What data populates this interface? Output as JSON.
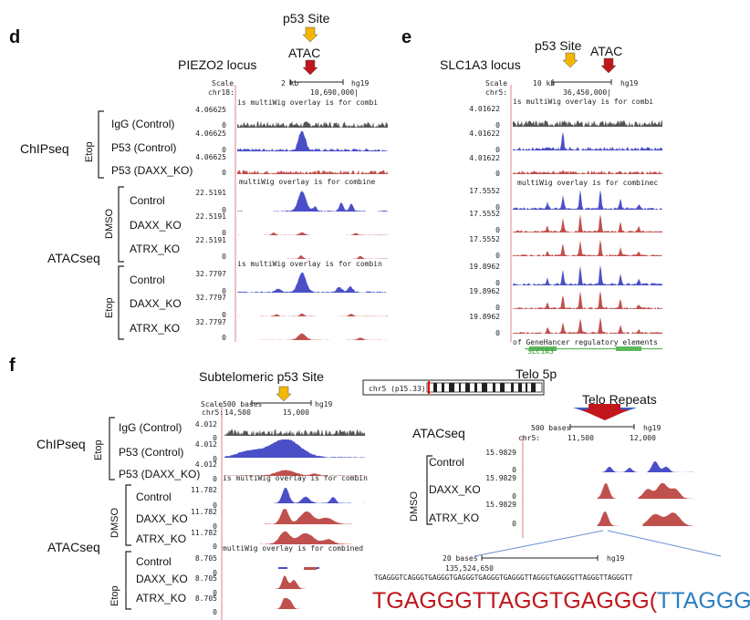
{
  "panel_d": {
    "letter": "d",
    "site_label": "p53 Site",
    "atac_label": "ATAC",
    "locus": "PIEZO2 locus",
    "scale": {
      "word": "Scale",
      "size": "2 kb",
      "build": "hg19",
      "chrom": "chr18:",
      "coord": "10,690,000|"
    },
    "overlay_text": "is multiWig overlay is for combi",
    "overlay_text2": "multiWig overlay is for combine",
    "overlay_text3": "is multiWig overlay is for combin",
    "scales": [
      "4.06625",
      "0",
      "4.06625",
      "0",
      "4.06625",
      "0",
      "22.5191",
      "0",
      "22.5191",
      "0",
      "22.5191",
      "0",
      "32.7797",
      "0",
      "32.7797",
      "0",
      "32.7797",
      "0"
    ],
    "tracks_chip": [
      "IgG (Control)",
      "P53 (Control)",
      "P53 (DAXX_KO)"
    ],
    "tracks_dmso": [
      "Control",
      "DAXX_KO",
      "ATRX_KO"
    ],
    "tracks_etop": [
      "Control",
      "DAXX_KO",
      "ATRX_KO"
    ],
    "group_chip": "ChIPseq",
    "group_atac": "ATACseq",
    "etop": "Etop",
    "dmso": "DMSO"
  },
  "panel_e": {
    "letter": "e",
    "site_label": "p53 Site",
    "atac_label": "ATAC",
    "locus": "SLC1A3 locus",
    "scale": {
      "word": "Scale",
      "size": "10 kb",
      "build": "hg19",
      "chrom": "chr5:",
      "coord": "36,450,000|"
    },
    "overlay_text": "is multiWig overlay is for combi",
    "overlay_text2": "multiWig overlay is for combinec",
    "scales": [
      "4.01622",
      "0",
      "4.01622",
      "0",
      "4.01622",
      "0",
      "17.5552",
      "0",
      "17.5552",
      "0",
      "17.5552",
      "0",
      "19.8962",
      "0",
      "19.8962",
      "0",
      "19.8962",
      "0"
    ],
    "footer": "of GeneHancer regulatory elements",
    "gene": "SLC1A3"
  },
  "panel_f": {
    "letter": "f",
    "site_label": "Subtelomeric p53 Site",
    "scale": {
      "word": "Scale",
      "size": "500 bases",
      "build": "hg19",
      "chrom": "chr5:",
      "coord1": "14,500",
      "coord2": "15,000"
    },
    "overlay_text": "is multiWig overlay is for combin",
    "overlay_text2": "multiWig overlay is for combined",
    "scales": [
      "4.012",
      "0",
      "4.012",
      "0",
      "4.012",
      "0",
      "11.782",
      "0",
      "11.782",
      "0",
      "11.782",
      "0",
      "8.705",
      "0",
      "8.705",
      "0",
      "8.705",
      "0"
    ],
    "tracks_chip": [
      "IgG (Control)",
      "P53 (Control)",
      "P53 (DAXX_KO)"
    ],
    "tracks_dmso": [
      "Control",
      "DAXX_KO",
      "ATRX_KO"
    ],
    "tracks_etop": [
      "Control",
      "DAXX_KO",
      "ATRX_KO"
    ],
    "group_chip": "ChIPseq",
    "group_atac": "ATACseq",
    "etop": "Etop",
    "dmso": "DMSO",
    "telo_title": "Telo 5p",
    "ideogram_label": "chr5 (p15.33)",
    "telo_repeats": "Telo Repeats",
    "atacseq2": "ATACseq",
    "scale2": {
      "size": "500 bases",
      "build": "hg19",
      "chrom": "chr5:",
      "coord1": "11,500",
      "coord2": "12,000"
    },
    "scales2": [
      "15.9829",
      "0",
      "15.9829",
      "0",
      "15.9829",
      "0"
    ],
    "tracks2": [
      "Control",
      "DAXX_KO",
      "ATRX_KO"
    ],
    "zoom_scale": {
      "size": "20 bases",
      "build": "hg19",
      "coord": "135,524,650"
    },
    "seq_small": "TGAGGGTCAGGGTGAGGGTGAGGGTGAGGGTGAGGGTTAGGGTGAGGGTTAGGGTTAGGGTT",
    "seq_red": "TGAGGGTTAGGTGAGGG(",
    "seq_blue": "TTAGGG)n"
  },
  "colors": {
    "gray": "#555555",
    "blue": "#4a4fc8",
    "red": "#c0504d",
    "yellow": "#f2b705",
    "arrow_red": "#c0161c"
  }
}
